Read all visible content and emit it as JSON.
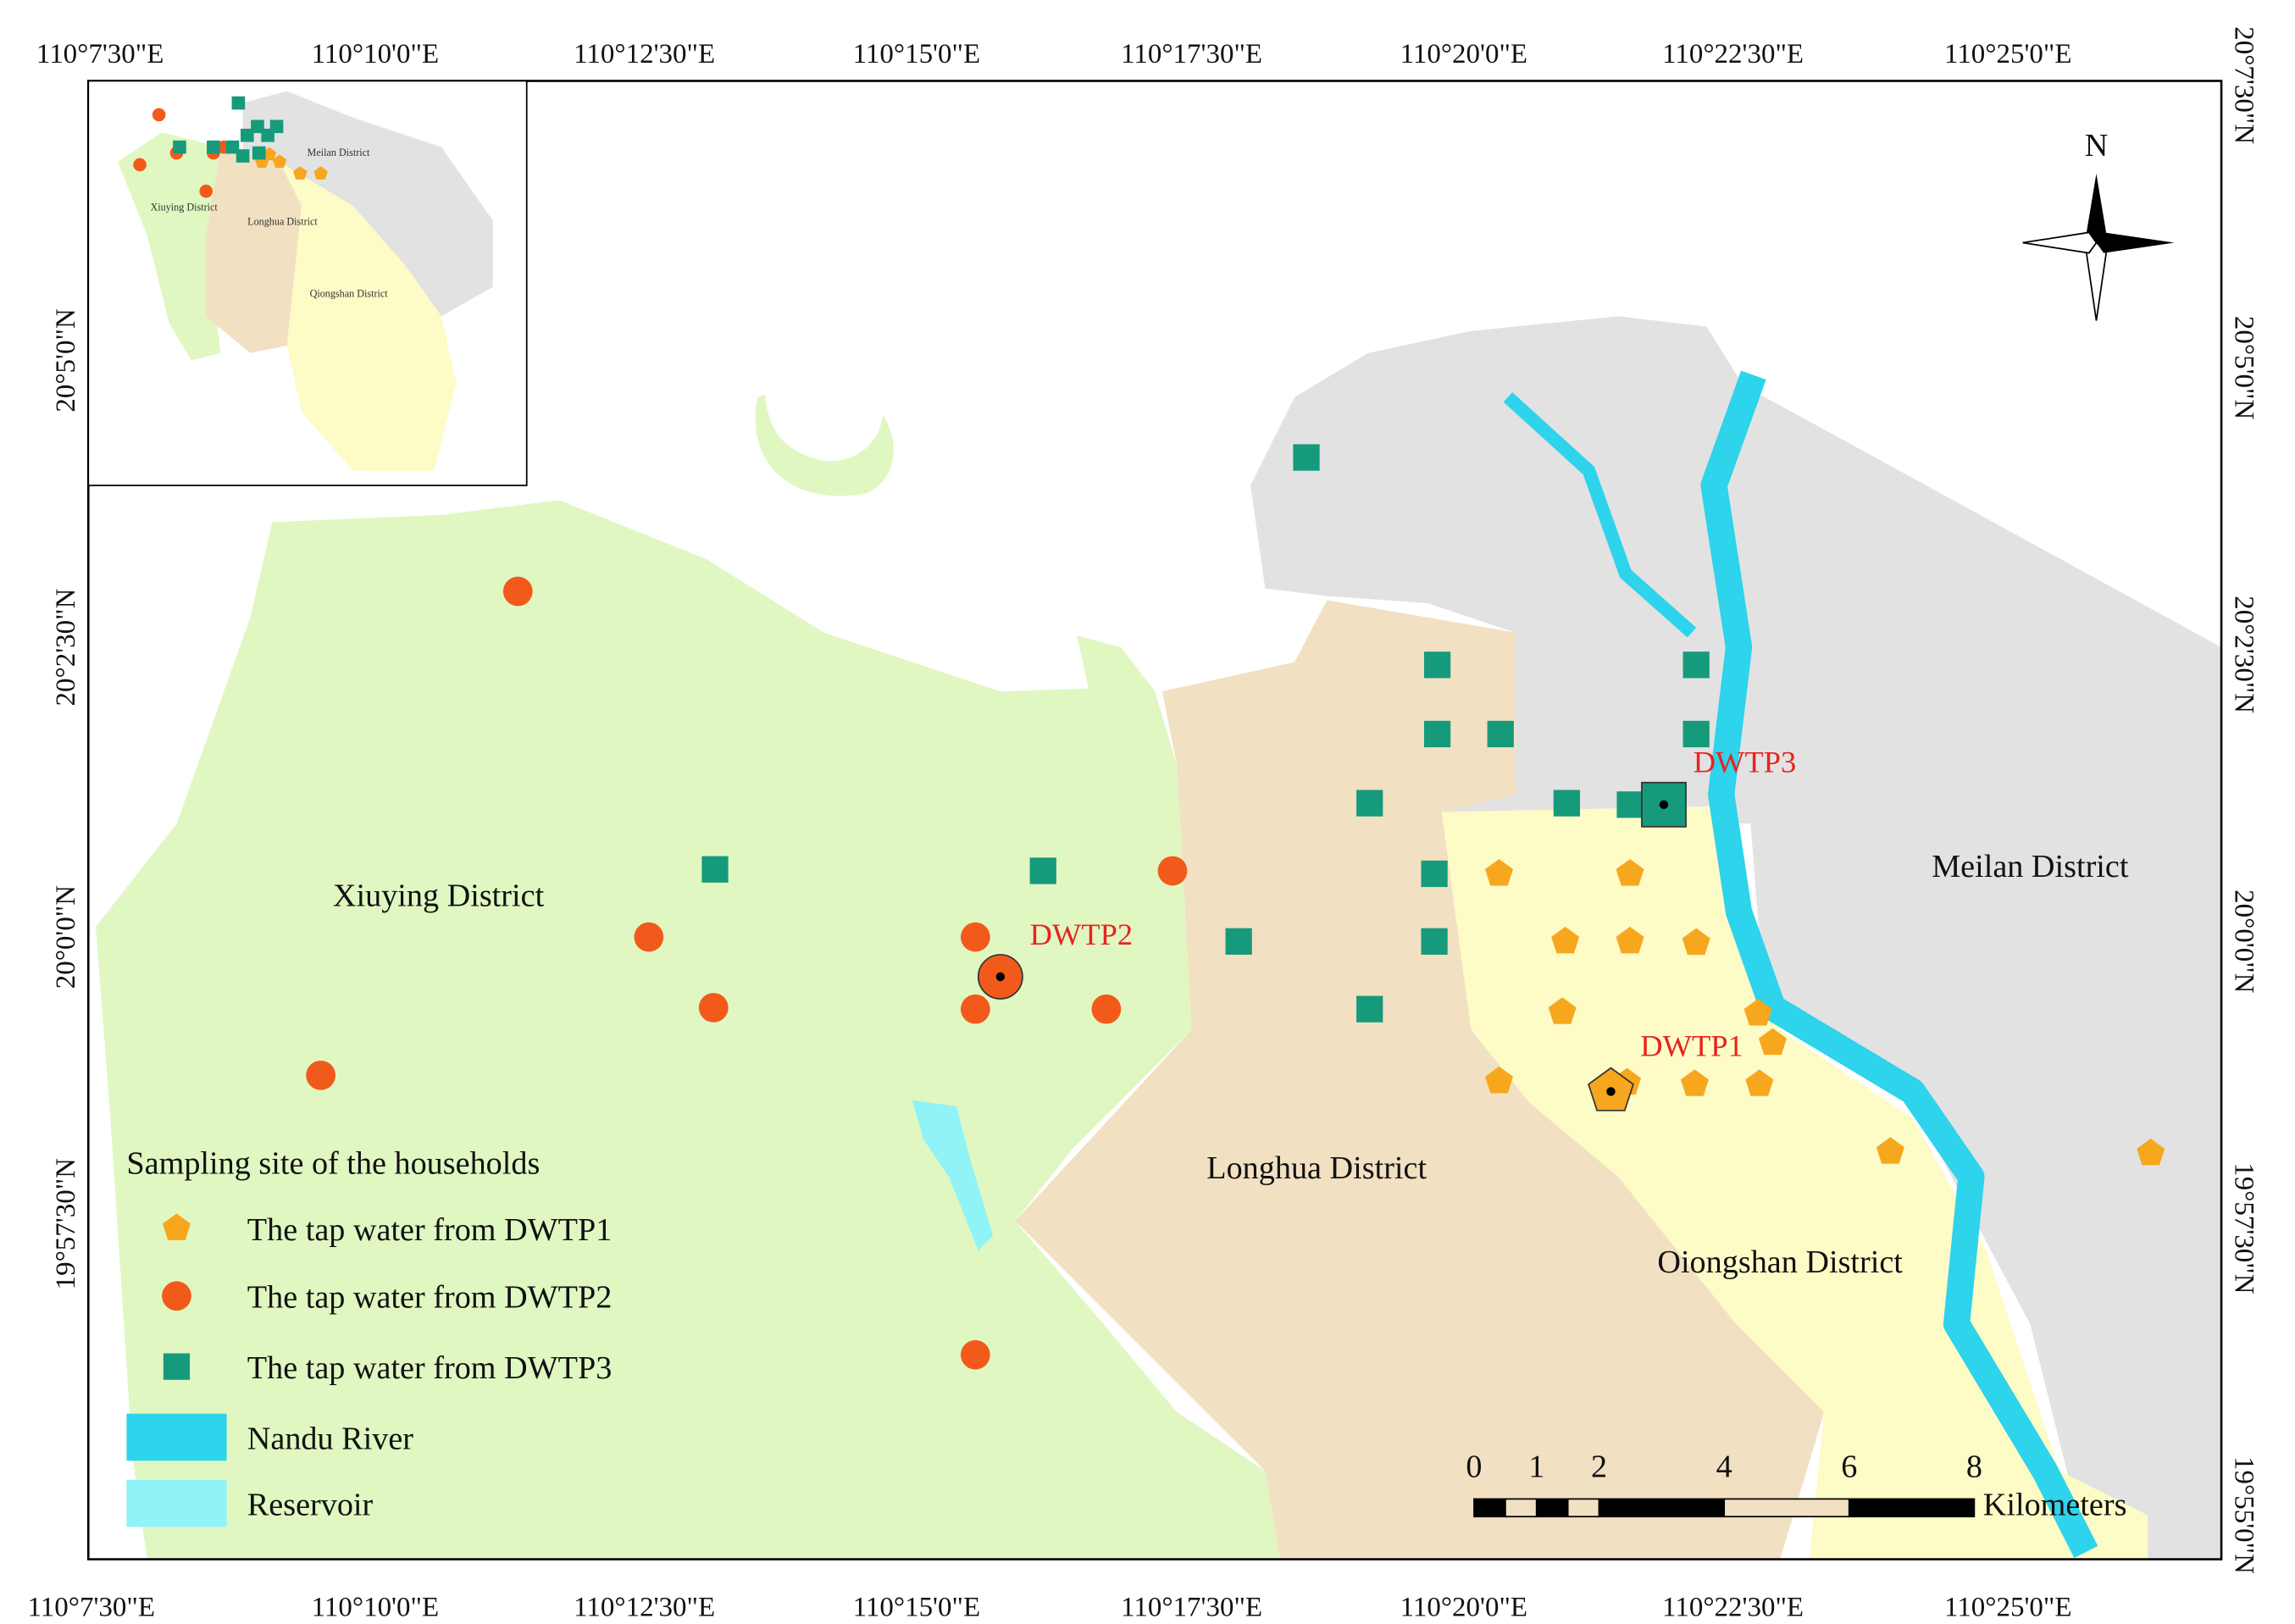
{
  "map": {
    "top_axis": [
      "110°7'30\"E",
      "110°10'0\"E",
      "110°12'30\"E",
      "110°15'0\"E",
      "110°17'30\"E",
      "110°20'0\"E",
      "110°22'30\"E",
      "110°25'0\"E"
    ],
    "bottom_axis": [
      "110°7'30\"E",
      "110°10'0\"E",
      "110°12'30\"E",
      "110°15'0\"E",
      "110°17'30\"E",
      "110°20'0\"E",
      "110°22'30\"E",
      "110°25'0\"E"
    ],
    "left_axis": [
      "20°5'0\"N",
      "20°2'30\"N",
      "20°0'0\"N",
      "19°57'30\"N"
    ],
    "right_axis": [
      "20°7'30\"N",
      "20°5'0\"N",
      "20°2'30\"N",
      "20°0'0\"N",
      "19°57'30\"N",
      "19°55'0\"N"
    ],
    "districts": [
      "Xiuying District",
      "Longhua District",
      "Oiongshan District",
      "Meilan District"
    ],
    "plants": [
      "DWTP1",
      "DWTP2",
      "DWTP3"
    ],
    "north": "N",
    "legend": {
      "title": "Sampling site of the households",
      "items": [
        "The tap water from DWTP1",
        "The tap water from DWTP2",
        "The tap water from DWTP3",
        "Nandu River",
        "Reservoir"
      ]
    },
    "scale_bar": {
      "ticks": [
        0,
        1,
        2,
        4,
        6,
        8
      ],
      "unit": "Kilometers"
    },
    "inset": {
      "labels": [
        "Meilan District",
        "Xiuying District",
        "Longhua District",
        "Qiongshan District"
      ]
    }
  }
}
